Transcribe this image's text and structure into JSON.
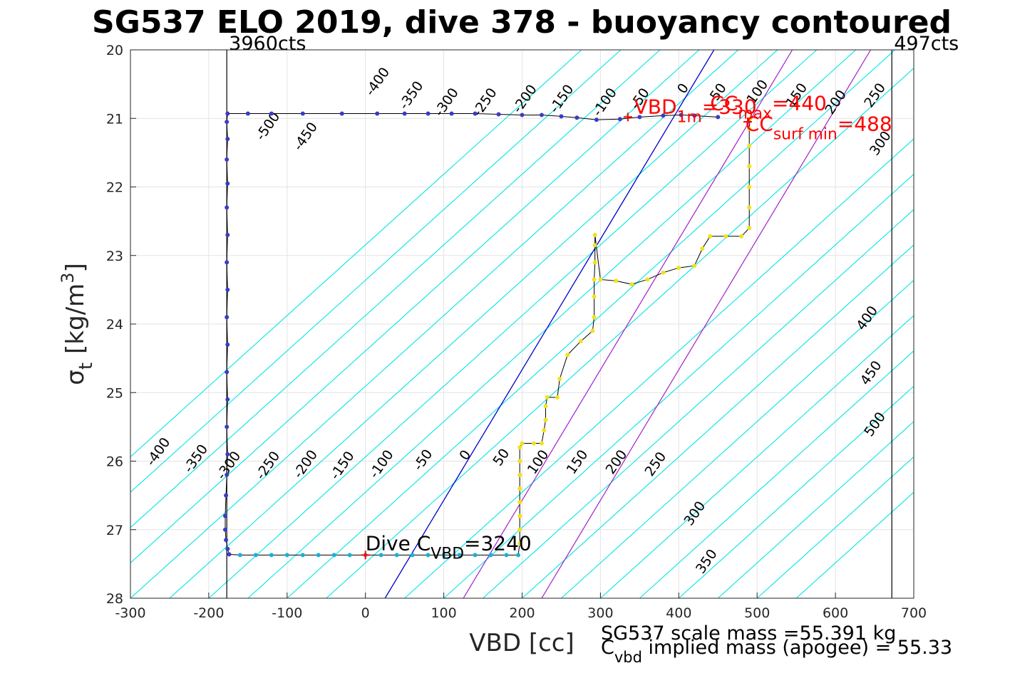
{
  "chart_data": {
    "type": "scatter",
    "title": "SG537 ELO 2019, dive 378 - buoyancy contoured",
    "xlabel": "VBD [cc]",
    "ylabel": {
      "main": "σ",
      "sub": "t",
      "unit": "[kg/m",
      "sup": "3",
      "close": "]"
    },
    "xlim": [
      -300,
      700
    ],
    "ylim": [
      20,
      28
    ],
    "y_reversed": true,
    "xticks": [
      -300,
      -200,
      -100,
      0,
      100,
      200,
      300,
      400,
      500,
      600,
      700
    ],
    "yticks": [
      20,
      21,
      22,
      23,
      24,
      25,
      26,
      27,
      28
    ],
    "grid": true,
    "colors": {
      "contour": "#00e5e5",
      "apogee_line": "#0000cc",
      "bound_lines": "#a020c8",
      "annotation_red": "#ff0000",
      "descent_dots": "#3b3bc8",
      "bottom_dots": "#17b2d8",
      "climb_dots": "#f2e21a"
    },
    "vertical_lines": [
      {
        "x": -177,
        "label": "3960cts"
      },
      {
        "x": 672,
        "label": "497cts"
      }
    ],
    "contour_levels": [
      -500,
      -450,
      -400,
      -350,
      -300,
      -250,
      -200,
      -150,
      -100,
      -50,
      0,
      50,
      100,
      150,
      200,
      250,
      300,
      350,
      400,
      450,
      500
    ],
    "contour_line_offsets": [
      -500,
      -450,
      -400,
      -350,
      -300,
      -250,
      -200,
      -150,
      -100,
      -50,
      50,
      100,
      150,
      200,
      250,
      300,
      350,
      400,
      450,
      500,
      550
    ],
    "contour_slope_cc_per_sigma": -97,
    "contour_labels_top": [
      {
        "text": "-500",
        "x": -120,
        "y": 21.15
      },
      {
        "text": "-450",
        "x": -72,
        "y": 21.3
      },
      {
        "text": "-400",
        "x": 20,
        "y": 20.5
      },
      {
        "text": "-350",
        "x": 63,
        "y": 20.7
      },
      {
        "text": "-300",
        "x": 108,
        "y": 20.8
      },
      {
        "text": "-250",
        "x": 157,
        "y": 20.8
      },
      {
        "text": "-200",
        "x": 208,
        "y": 20.75
      },
      {
        "text": "-150",
        "x": 255,
        "y": 20.75
      },
      {
        "text": "-100",
        "x": 310,
        "y": 20.8
      },
      {
        "text": "-50",
        "x": 355,
        "y": 20.75
      },
      {
        "text": "0",
        "x": 410,
        "y": 20.6
      },
      {
        "text": "50",
        "x": 455,
        "y": 20.65
      },
      {
        "text": "100",
        "x": 505,
        "y": 20.65
      },
      {
        "text": "150",
        "x": 555,
        "y": 20.7
      },
      {
        "text": "200",
        "x": 605,
        "y": 20.8
      },
      {
        "text": "250",
        "x": 655,
        "y": 20.7
      },
      {
        "text": "300",
        "x": 662,
        "y": 21.4
      }
    ],
    "contour_labels_bottom": [
      {
        "text": "-400",
        "x": -260,
        "y": 25.9
      },
      {
        "text": "-350",
        "x": -212,
        "y": 26.0
      },
      {
        "text": "-300",
        "x": -170,
        "y": 26.1
      },
      {
        "text": "-250",
        "x": -120,
        "y": 26.1
      },
      {
        "text": "-200",
        "x": -72,
        "y": 26.08
      },
      {
        "text": "-150",
        "x": -25,
        "y": 26.1
      },
      {
        "text": "-100",
        "x": 25,
        "y": 26.08
      },
      {
        "text": "-50",
        "x": 78,
        "y": 26.02
      },
      {
        "text": "0",
        "x": 132,
        "y": 25.95
      },
      {
        "text": "50",
        "x": 178,
        "y": 25.98
      },
      {
        "text": "100",
        "x": 225,
        "y": 26.05
      },
      {
        "text": "150",
        "x": 275,
        "y": 26.05
      },
      {
        "text": "200",
        "x": 325,
        "y": 26.05
      },
      {
        "text": "250",
        "x": 375,
        "y": 26.08
      },
      {
        "text": "300",
        "x": 425,
        "y": 26.8
      },
      {
        "text": "350",
        "x": 440,
        "y": 27.5
      },
      {
        "text": "400",
        "x": 645,
        "y": 23.95
      },
      {
        "text": "450",
        "x": 650,
        "y": 24.75
      },
      {
        "text": "500",
        "x": 655,
        "y": 25.5
      }
    ],
    "apogee_line": {
      "points": [
        [
          25,
          28
        ],
        [
          445,
          20
        ]
      ]
    },
    "bound_lines": [
      {
        "points": [
          [
            125,
            28
          ],
          [
            545,
            20
          ]
        ]
      },
      {
        "points": [
          [
            225,
            28
          ],
          [
            645,
            20
          ]
        ]
      }
    ],
    "series": [
      {
        "name": "descent",
        "color": "#3b3bc8",
        "points": [
          [
            450,
            20.98
          ],
          [
            420,
            20.96
          ],
          [
            403,
            20.95
          ],
          [
            380,
            20.96
          ],
          [
            350,
            20.98
          ],
          [
            325,
            21.01
          ],
          [
            295,
            21.02
          ],
          [
            270,
            20.99
          ],
          [
            250,
            20.97
          ],
          [
            225,
            20.95
          ],
          [
            200,
            20.95
          ],
          [
            170,
            20.94
          ],
          [
            140,
            20.93
          ],
          [
            110,
            20.93
          ],
          [
            80,
            20.93
          ],
          [
            50,
            20.93
          ],
          [
            15,
            20.93
          ],
          [
            -30,
            20.93
          ],
          [
            -80,
            20.93
          ],
          [
            -120,
            20.93
          ],
          [
            -150,
            20.93
          ],
          [
            -176,
            20.93
          ],
          [
            -177,
            21.05
          ],
          [
            -176,
            21.3
          ],
          [
            -177,
            21.6
          ],
          [
            -176,
            21.95
          ],
          [
            -177,
            22.3
          ],
          [
            -176,
            22.7
          ],
          [
            -177,
            23.1
          ],
          [
            -176,
            23.5
          ],
          [
            -177,
            23.9
          ],
          [
            -176,
            24.3
          ],
          [
            -177,
            24.7
          ],
          [
            -176,
            25.1
          ],
          [
            -177,
            25.5
          ],
          [
            -176,
            25.9
          ],
          [
            -177,
            26.2
          ],
          [
            -178,
            26.5
          ],
          [
            -179,
            26.8
          ],
          [
            -179,
            27.0
          ],
          [
            -178,
            27.15
          ],
          [
            -176,
            27.28
          ],
          [
            -174,
            27.36
          ]
        ]
      },
      {
        "name": "bottom",
        "color": "#17b2d8",
        "points": [
          [
            -160,
            27.37
          ],
          [
            -140,
            27.37
          ],
          [
            -120,
            27.37
          ],
          [
            -100,
            27.37
          ],
          [
            -80,
            27.37
          ],
          [
            -60,
            27.37
          ],
          [
            -40,
            27.37
          ],
          [
            -20,
            27.37
          ],
          [
            0,
            27.37
          ],
          [
            20,
            27.37
          ],
          [
            40,
            27.37
          ],
          [
            60,
            27.37
          ],
          [
            80,
            27.37
          ],
          [
            100,
            27.37
          ],
          [
            120,
            27.37
          ],
          [
            140,
            27.37
          ],
          [
            160,
            27.37
          ],
          [
            180,
            27.37
          ],
          [
            195,
            27.37
          ]
        ]
      },
      {
        "name": "climb",
        "color": "#f2e21a",
        "points": [
          [
            197,
            27.2
          ],
          [
            197,
            27.0
          ],
          [
            197,
            26.8
          ],
          [
            197,
            26.6
          ],
          [
            197,
            26.4
          ],
          [
            197,
            26.2
          ],
          [
            197,
            26.0
          ],
          [
            197,
            25.8
          ],
          [
            200,
            25.74
          ],
          [
            215,
            25.74
          ],
          [
            225,
            25.74
          ],
          [
            228,
            25.55
          ],
          [
            230,
            25.4
          ],
          [
            230,
            25.2
          ],
          [
            232,
            25.07
          ],
          [
            245,
            25.07
          ],
          [
            248,
            24.8
          ],
          [
            258,
            24.45
          ],
          [
            275,
            24.25
          ],
          [
            290,
            24.1
          ],
          [
            292,
            23.9
          ],
          [
            292,
            23.6
          ],
          [
            292,
            23.35
          ],
          [
            293,
            23.1
          ],
          [
            293,
            22.85
          ],
          [
            293,
            22.7
          ],
          [
            300,
            23.35
          ],
          [
            320,
            23.37
          ],
          [
            340,
            23.42
          ],
          [
            360,
            23.35
          ],
          [
            380,
            23.25
          ],
          [
            400,
            23.18
          ],
          [
            420,
            23.15
          ],
          [
            430,
            22.9
          ],
          [
            440,
            22.72
          ],
          [
            460,
            22.72
          ],
          [
            480,
            22.72
          ],
          [
            490,
            22.6
          ],
          [
            490,
            22.3
          ],
          [
            490,
            22.0
          ],
          [
            490,
            21.7
          ],
          [
            490,
            21.4
          ],
          [
            490,
            21.15
          ],
          [
            491,
            21.0
          ]
        ]
      }
    ],
    "red_markers": [
      {
        "x": 0,
        "y": 27.37
      },
      {
        "x": 335,
        "y": 20.98
      },
      {
        "x": 488,
        "y": 21.05
      }
    ],
    "annotations": {
      "dive_c": {
        "main": "Dive C",
        "sub": "VBD",
        "value": "=3240",
        "x": 0,
        "y": 27.3
      },
      "vbd_1m": {
        "main": "VBD",
        "sub": "1m",
        "value": "=330",
        "x": 343,
        "y": 20.93
      },
      "cc_max": {
        "main": "CC",
        "sub": "max",
        "value": "=440",
        "x": 440,
        "y": 20.88
      },
      "cc_surf_min": {
        "main": "CC",
        "sub": "surf min",
        "value": "=488",
        "x": 485,
        "y": 21.18
      }
    },
    "footer": {
      "scale_mass": "SG537 scale mass =55.391 kg",
      "implied_main": "C",
      "implied_sub": "vbd",
      "implied_rest": " implied mass (apogee) = 55.33"
    }
  }
}
